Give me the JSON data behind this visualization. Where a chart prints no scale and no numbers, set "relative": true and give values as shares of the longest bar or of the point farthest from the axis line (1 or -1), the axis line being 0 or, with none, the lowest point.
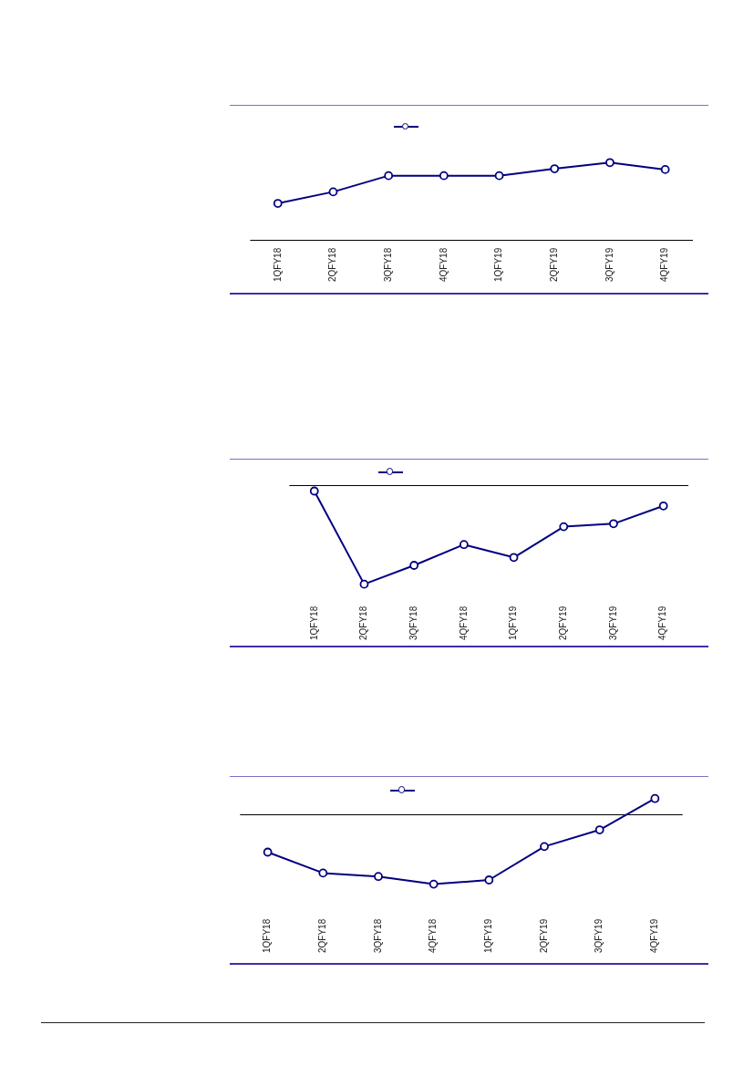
{
  "chart_data": [
    {
      "type": "line",
      "categories": [
        "1QFY18",
        "2QFY18",
        "3QFY18",
        "4QFY18",
        "1QFY19",
        "2QFY19",
        "3QFY19",
        "4QFY19"
      ],
      "series": [
        {
          "color": "#000080",
          "values": [
            0.47,
            0.62,
            0.83,
            0.83,
            0.83,
            0.92,
            1,
            0.91
          ]
        }
      ],
      "relative": true,
      "marker": "circle"
    },
    {
      "type": "line",
      "categories": [
        "1QFY18",
        "2QFY18",
        "3QFY18",
        "4QFY18",
        "1QFY19",
        "2QFY19",
        "3QFY19",
        "4QFY19"
      ],
      "series": [
        {
          "color": "#000080",
          "values": [
            -0.06,
            -1,
            -0.81,
            -0.6,
            -0.73,
            -0.42,
            -0.39,
            -0.21
          ]
        }
      ],
      "relative": true,
      "marker": "circle"
    },
    {
      "type": "line",
      "categories": [
        "1QFY18",
        "2QFY18",
        "3QFY18",
        "4QFY18",
        "1QFY19",
        "2QFY19",
        "3QFY19",
        "4QFY19"
      ],
      "series": [
        {
          "color": "#000080",
          "values": [
            -0.54,
            -0.84,
            -0.89,
            -1,
            -0.94,
            -0.46,
            -0.22,
            0.23
          ]
        }
      ],
      "relative": true,
      "marker": "circle"
    }
  ]
}
